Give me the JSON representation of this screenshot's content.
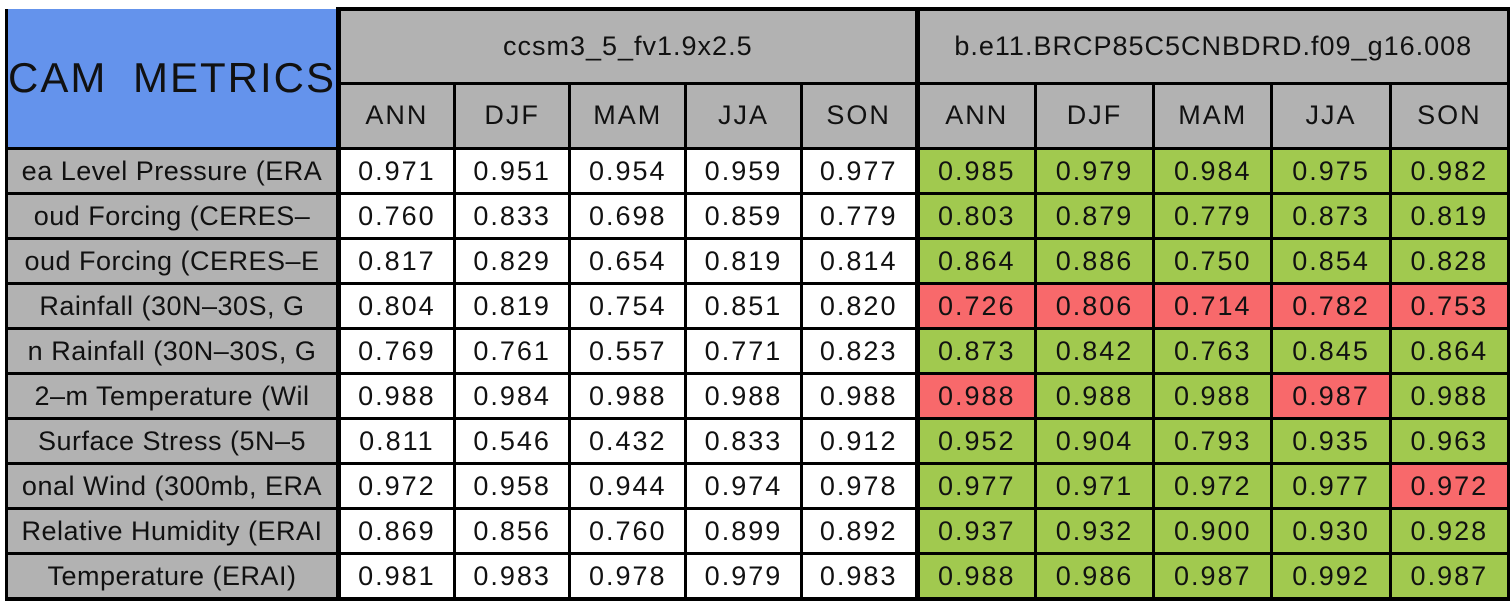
{
  "colors": {
    "title_blue": "#6493ec",
    "header_gray": "#b2b2b2",
    "cell_green": "#a1c94f",
    "cell_red": "#f8696b",
    "border_black": "#000000",
    "cell_white": "#ffffff"
  },
  "chart_data": {
    "type": "table",
    "title": "CAM METRICS",
    "col_groups": [
      {
        "name": "ccsm3_5_fv1.9x2.5",
        "seasons": [
          "ANN",
          "DJF",
          "MAM",
          "JJA",
          "SON"
        ]
      },
      {
        "name": "b.e11.BRCP85C5CNBDRD.f09_g16.008",
        "seasons": [
          "ANN",
          "DJF",
          "MAM",
          "JJA",
          "SON"
        ]
      }
    ],
    "highlight_legend": {
      "g": "green highlight",
      "r": "red highlight"
    },
    "rows": [
      {
        "label": "ea Level Pressure (ERA",
        "m1": [
          "0.971",
          "0.951",
          "0.954",
          "0.959",
          "0.977"
        ],
        "m2": [
          {
            "v": "0.985",
            "c": "g"
          },
          {
            "v": "0.979",
            "c": "g"
          },
          {
            "v": "0.984",
            "c": "g"
          },
          {
            "v": "0.975",
            "c": "g"
          },
          {
            "v": "0.982",
            "c": "g"
          }
        ]
      },
      {
        "label": "oud Forcing (CERES–",
        "m1": [
          "0.760",
          "0.833",
          "0.698",
          "0.859",
          "0.779"
        ],
        "m2": [
          {
            "v": "0.803",
            "c": "g"
          },
          {
            "v": "0.879",
            "c": "g"
          },
          {
            "v": "0.779",
            "c": "g"
          },
          {
            "v": "0.873",
            "c": "g"
          },
          {
            "v": "0.819",
            "c": "g"
          }
        ]
      },
      {
        "label": "oud Forcing (CERES–E",
        "m1": [
          "0.817",
          "0.829",
          "0.654",
          "0.819",
          "0.814"
        ],
        "m2": [
          {
            "v": "0.864",
            "c": "g"
          },
          {
            "v": "0.886",
            "c": "g"
          },
          {
            "v": "0.750",
            "c": "g"
          },
          {
            "v": "0.854",
            "c": "g"
          },
          {
            "v": "0.828",
            "c": "g"
          }
        ]
      },
      {
        "label": "Rainfall (30N–30S, G",
        "m1": [
          "0.804",
          "0.819",
          "0.754",
          "0.851",
          "0.820"
        ],
        "m2": [
          {
            "v": "0.726",
            "c": "r"
          },
          {
            "v": "0.806",
            "c": "r"
          },
          {
            "v": "0.714",
            "c": "r"
          },
          {
            "v": "0.782",
            "c": "r"
          },
          {
            "v": "0.753",
            "c": "r"
          }
        ]
      },
      {
        "label": "n Rainfall (30N–30S, G",
        "m1": [
          "0.769",
          "0.761",
          "0.557",
          "0.771",
          "0.823"
        ],
        "m2": [
          {
            "v": "0.873",
            "c": "g"
          },
          {
            "v": "0.842",
            "c": "g"
          },
          {
            "v": "0.763",
            "c": "g"
          },
          {
            "v": "0.845",
            "c": "g"
          },
          {
            "v": "0.864",
            "c": "g"
          }
        ]
      },
      {
        "label": "2–m Temperature (Wil",
        "m1": [
          "0.988",
          "0.984",
          "0.988",
          "0.988",
          "0.988"
        ],
        "m2": [
          {
            "v": "0.988",
            "c": "r"
          },
          {
            "v": "0.988",
            "c": "g"
          },
          {
            "v": "0.988",
            "c": "g"
          },
          {
            "v": "0.987",
            "c": "r"
          },
          {
            "v": "0.988",
            "c": "g"
          }
        ]
      },
      {
        "label": "Surface Stress (5N–5",
        "m1": [
          "0.811",
          "0.546",
          "0.432",
          "0.833",
          "0.912"
        ],
        "m2": [
          {
            "v": "0.952",
            "c": "g"
          },
          {
            "v": "0.904",
            "c": "g"
          },
          {
            "v": "0.793",
            "c": "g"
          },
          {
            "v": "0.935",
            "c": "g"
          },
          {
            "v": "0.963",
            "c": "g"
          }
        ]
      },
      {
        "label": "onal Wind (300mb, ERA",
        "m1": [
          "0.972",
          "0.958",
          "0.944",
          "0.974",
          "0.978"
        ],
        "m2": [
          {
            "v": "0.977",
            "c": "g"
          },
          {
            "v": "0.971",
            "c": "g"
          },
          {
            "v": "0.972",
            "c": "g"
          },
          {
            "v": "0.977",
            "c": "g"
          },
          {
            "v": "0.972",
            "c": "r"
          }
        ]
      },
      {
        "label": "Relative Humidity (ERAI",
        "m1": [
          "0.869",
          "0.856",
          "0.760",
          "0.899",
          "0.892"
        ],
        "m2": [
          {
            "v": "0.937",
            "c": "g"
          },
          {
            "v": "0.932",
            "c": "g"
          },
          {
            "v": "0.900",
            "c": "g"
          },
          {
            "v": "0.930",
            "c": "g"
          },
          {
            "v": "0.928",
            "c": "g"
          }
        ]
      },
      {
        "label": "Temperature (ERAI)",
        "m1": [
          "0.981",
          "0.983",
          "0.978",
          "0.979",
          "0.983"
        ],
        "m2": [
          {
            "v": "0.988",
            "c": "g"
          },
          {
            "v": "0.986",
            "c": "g"
          },
          {
            "v": "0.987",
            "c": "g"
          },
          {
            "v": "0.992",
            "c": "g"
          },
          {
            "v": "0.987",
            "c": "g"
          }
        ]
      }
    ]
  }
}
